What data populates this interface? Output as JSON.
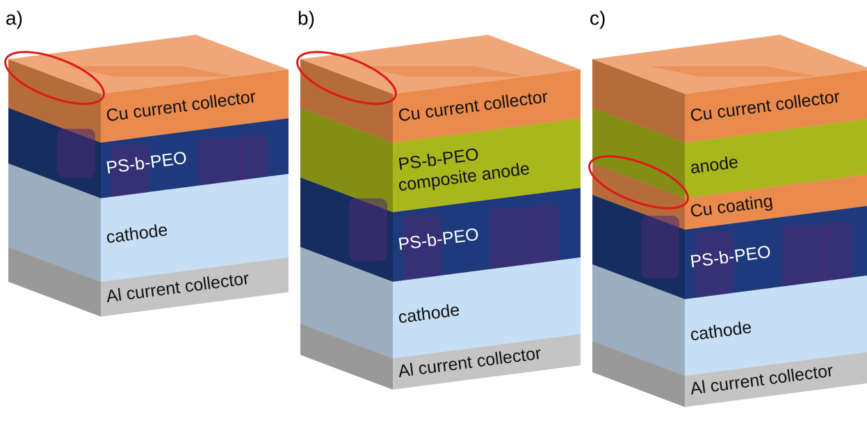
{
  "panels": [
    {
      "label": "a)",
      "layers": [
        {
          "lines": [
            "Cu current collector"
          ],
          "color": "#ea8a4c"
        },
        {
          "lines": [
            "PS-b-PEO"
          ],
          "color": "#1e3a7c"
        },
        {
          "lines": [
            "cathode"
          ],
          "color": "#c6dff6"
        },
        {
          "lines": [
            "Al current collector"
          ],
          "color": "#c4c4c4"
        }
      ]
    },
    {
      "label": "b)",
      "layers": [
        {
          "lines": [
            "Cu current collector"
          ],
          "color": "#ea8a4c"
        },
        {
          "lines": [
            "PS-b-PEO",
            "composite anode"
          ],
          "color": "#a9b61c"
        },
        {
          "lines": [
            "PS-b-PEO"
          ],
          "color": "#1e3a7c"
        },
        {
          "lines": [
            "cathode"
          ],
          "color": "#c6dff6"
        },
        {
          "lines": [
            "Al current collector"
          ],
          "color": "#c4c4c4"
        }
      ]
    },
    {
      "label": "c)",
      "layers": [
        {
          "lines": [
            "Cu current collector"
          ],
          "color": "#ea8a4c"
        },
        {
          "lines": [
            "anode"
          ],
          "color": "#a9b61c"
        },
        {
          "lines": [
            "Cu coating"
          ],
          "color": "#ea8a4c"
        },
        {
          "lines": [
            "PS-b-PEO"
          ],
          "color": "#1e3a7c"
        },
        {
          "lines": [
            "cathode"
          ],
          "color": "#c6dff6"
        },
        {
          "lines": [
            "Al current collector"
          ],
          "color": "#c4c4c4"
        }
      ]
    }
  ]
}
